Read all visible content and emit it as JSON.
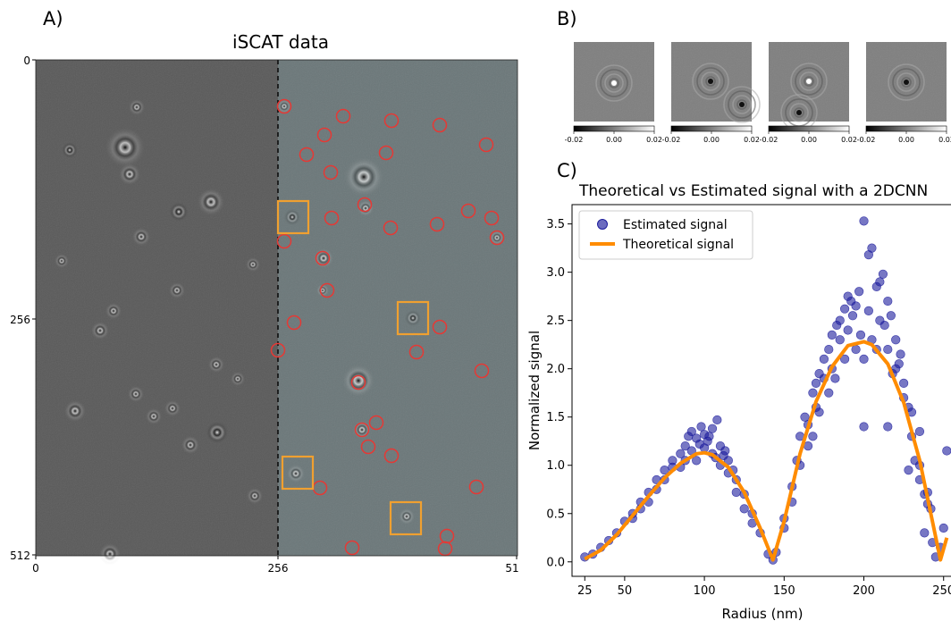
{
  "panel_a": {
    "label": "A)",
    "title": "iSCAT  data",
    "x_ticks": [
      "0",
      "256",
      "51"
    ],
    "y_ticks": [
      "0",
      "256",
      "512"
    ],
    "colors": {
      "left_bg": "#595959",
      "right_bg": "#687476",
      "detection_circle": "#e53935",
      "selection_box": "#f0a030",
      "divider": "#000000"
    }
  },
  "panel_b": {
    "label": "B)",
    "colorbar_ticks": [
      "-0.02",
      "0.00",
      "0.02"
    ],
    "tiles": 4
  },
  "chart_data": {
    "type": "scatter",
    "label": "C)",
    "title": "Theoretical vs Estimated signal with a 2DCNN",
    "xlabel": "Radius (nm)",
    "ylabel": "Normalized signal",
    "xlim": [
      17,
      258
    ],
    "ylim": [
      -0.15,
      3.7
    ],
    "x_ticks": [
      "25",
      "50",
      "100",
      "150",
      "200",
      "250"
    ],
    "y_ticks": [
      "0.0",
      "0.5",
      "1.0",
      "1.5",
      "2.0",
      "2.5",
      "3.0",
      "3.5"
    ],
    "legend_position": "top-left",
    "grid": false,
    "series": [
      {
        "name": "Estimated signal",
        "kind": "scatter",
        "color": "#1c1c9c",
        "points": [
          [
            25,
            0.05
          ],
          [
            30,
            0.08
          ],
          [
            35,
            0.15
          ],
          [
            40,
            0.22
          ],
          [
            45,
            0.3
          ],
          [
            50,
            0.42
          ],
          [
            55,
            0.5
          ],
          [
            60,
            0.62
          ],
          [
            65,
            0.72
          ],
          [
            70,
            0.85
          ],
          [
            75,
            0.95
          ],
          [
            80,
            1.05
          ],
          [
            85,
            1.12
          ],
          [
            88,
            1.2
          ],
          [
            90,
            1.3
          ],
          [
            92,
            1.35
          ],
          [
            95,
            1.28
          ],
          [
            98,
            1.4
          ],
          [
            100,
            1.32
          ],
          [
            102,
            1.25
          ],
          [
            105,
            1.38
          ],
          [
            108,
            1.47
          ],
          [
            110,
            1.2
          ],
          [
            112,
            1.1
          ],
          [
            115,
            1.05
          ],
          [
            118,
            0.95
          ],
          [
            120,
            0.85
          ],
          [
            125,
            0.7
          ],
          [
            130,
            0.5
          ],
          [
            135,
            0.3
          ],
          [
            140,
            0.08
          ],
          [
            143,
            0.02
          ],
          [
            145,
            0.1
          ],
          [
            150,
            0.45
          ],
          [
            155,
            0.78
          ],
          [
            158,
            1.05
          ],
          [
            160,
            1.3
          ],
          [
            163,
            1.5
          ],
          [
            165,
            1.42
          ],
          [
            168,
            1.75
          ],
          [
            170,
            1.85
          ],
          [
            172,
            1.95
          ],
          [
            175,
            2.1
          ],
          [
            178,
            2.2
          ],
          [
            180,
            2.35
          ],
          [
            183,
            2.45
          ],
          [
            185,
            2.5
          ],
          [
            188,
            2.62
          ],
          [
            190,
            2.75
          ],
          [
            192,
            2.7
          ],
          [
            195,
            2.65
          ],
          [
            197,
            2.8
          ],
          [
            200,
            3.53
          ],
          [
            203,
            3.18
          ],
          [
            205,
            3.25
          ],
          [
            208,
            2.85
          ],
          [
            210,
            2.9
          ],
          [
            212,
            2.98
          ],
          [
            215,
            2.7
          ],
          [
            217,
            2.55
          ],
          [
            220,
            2.3
          ],
          [
            222,
            2.05
          ],
          [
            225,
            1.85
          ],
          [
            228,
            1.6
          ],
          [
            230,
            1.3
          ],
          [
            232,
            1.05
          ],
          [
            235,
            0.85
          ],
          [
            238,
            0.7
          ],
          [
            240,
            0.72
          ],
          [
            242,
            0.55
          ],
          [
            245,
            0.05
          ],
          [
            248,
            0.15
          ],
          [
            250,
            0.35
          ],
          [
            252,
            1.15
          ],
          [
            85,
            0.98
          ],
          [
            95,
            1.05
          ],
          [
            100,
            1.18
          ],
          [
            105,
            1.12
          ],
          [
            110,
            1.0
          ],
          [
            115,
            0.92
          ],
          [
            120,
            0.72
          ],
          [
            125,
            0.55
          ],
          [
            130,
            0.4
          ],
          [
            88,
            1.05
          ],
          [
            92,
            1.15
          ],
          [
            97,
            1.22
          ],
          [
            103,
            1.3
          ],
          [
            107,
            1.08
          ],
          [
            113,
            1.15
          ],
          [
            75,
            0.85
          ],
          [
            80,
            0.98
          ],
          [
            70,
            0.75
          ],
          [
            65,
            0.62
          ],
          [
            60,
            0.55
          ],
          [
            55,
            0.45
          ],
          [
            170,
            1.6
          ],
          [
            175,
            1.9
          ],
          [
            180,
            2.0
          ],
          [
            185,
            2.3
          ],
          [
            190,
            2.4
          ],
          [
            195,
            2.2
          ],
          [
            200,
            2.1
          ],
          [
            205,
            2.3
          ],
          [
            210,
            2.5
          ],
          [
            215,
            2.2
          ],
          [
            220,
            2.0
          ],
          [
            225,
            1.7
          ],
          [
            230,
            1.55
          ],
          [
            235,
            1.0
          ],
          [
            240,
            0.6
          ],
          [
            178,
            1.75
          ],
          [
            188,
            2.1
          ],
          [
            198,
            2.35
          ],
          [
            208,
            2.2
          ],
          [
            218,
            1.95
          ],
          [
            165,
            1.2
          ],
          [
            160,
            1.0
          ],
          [
            155,
            0.62
          ],
          [
            150,
            0.35
          ],
          [
            200,
            1.4
          ],
          [
            215,
            1.4
          ],
          [
            235,
            1.35
          ],
          [
            228,
            0.95
          ],
          [
            238,
            0.3
          ],
          [
            243,
            0.2
          ],
          [
            168,
            1.3
          ],
          [
            172,
            1.55
          ],
          [
            182,
            1.9
          ],
          [
            193,
            2.55
          ],
          [
            203,
            2.6
          ],
          [
            213,
            2.45
          ],
          [
            223,
            2.15
          ]
        ]
      },
      {
        "name": "Theoretical signal",
        "kind": "line",
        "color": "#ff8c00",
        "points": [
          [
            25,
            0.03
          ],
          [
            35,
            0.12
          ],
          [
            45,
            0.28
          ],
          [
            55,
            0.48
          ],
          [
            65,
            0.68
          ],
          [
            75,
            0.87
          ],
          [
            85,
            1.02
          ],
          [
            95,
            1.12
          ],
          [
            100,
            1.13
          ],
          [
            105,
            1.11
          ],
          [
            115,
            0.98
          ],
          [
            125,
            0.72
          ],
          [
            135,
            0.35
          ],
          [
            143,
            0.02
          ],
          [
            150,
            0.42
          ],
          [
            160,
            1.12
          ],
          [
            170,
            1.66
          ],
          [
            180,
            2.02
          ],
          [
            190,
            2.24
          ],
          [
            200,
            2.28
          ],
          [
            205,
            2.25
          ],
          [
            215,
            2.05
          ],
          [
            225,
            1.65
          ],
          [
            235,
            1.05
          ],
          [
            243,
            0.42
          ],
          [
            248,
            0.02
          ],
          [
            252,
            0.25
          ]
        ]
      }
    ]
  }
}
